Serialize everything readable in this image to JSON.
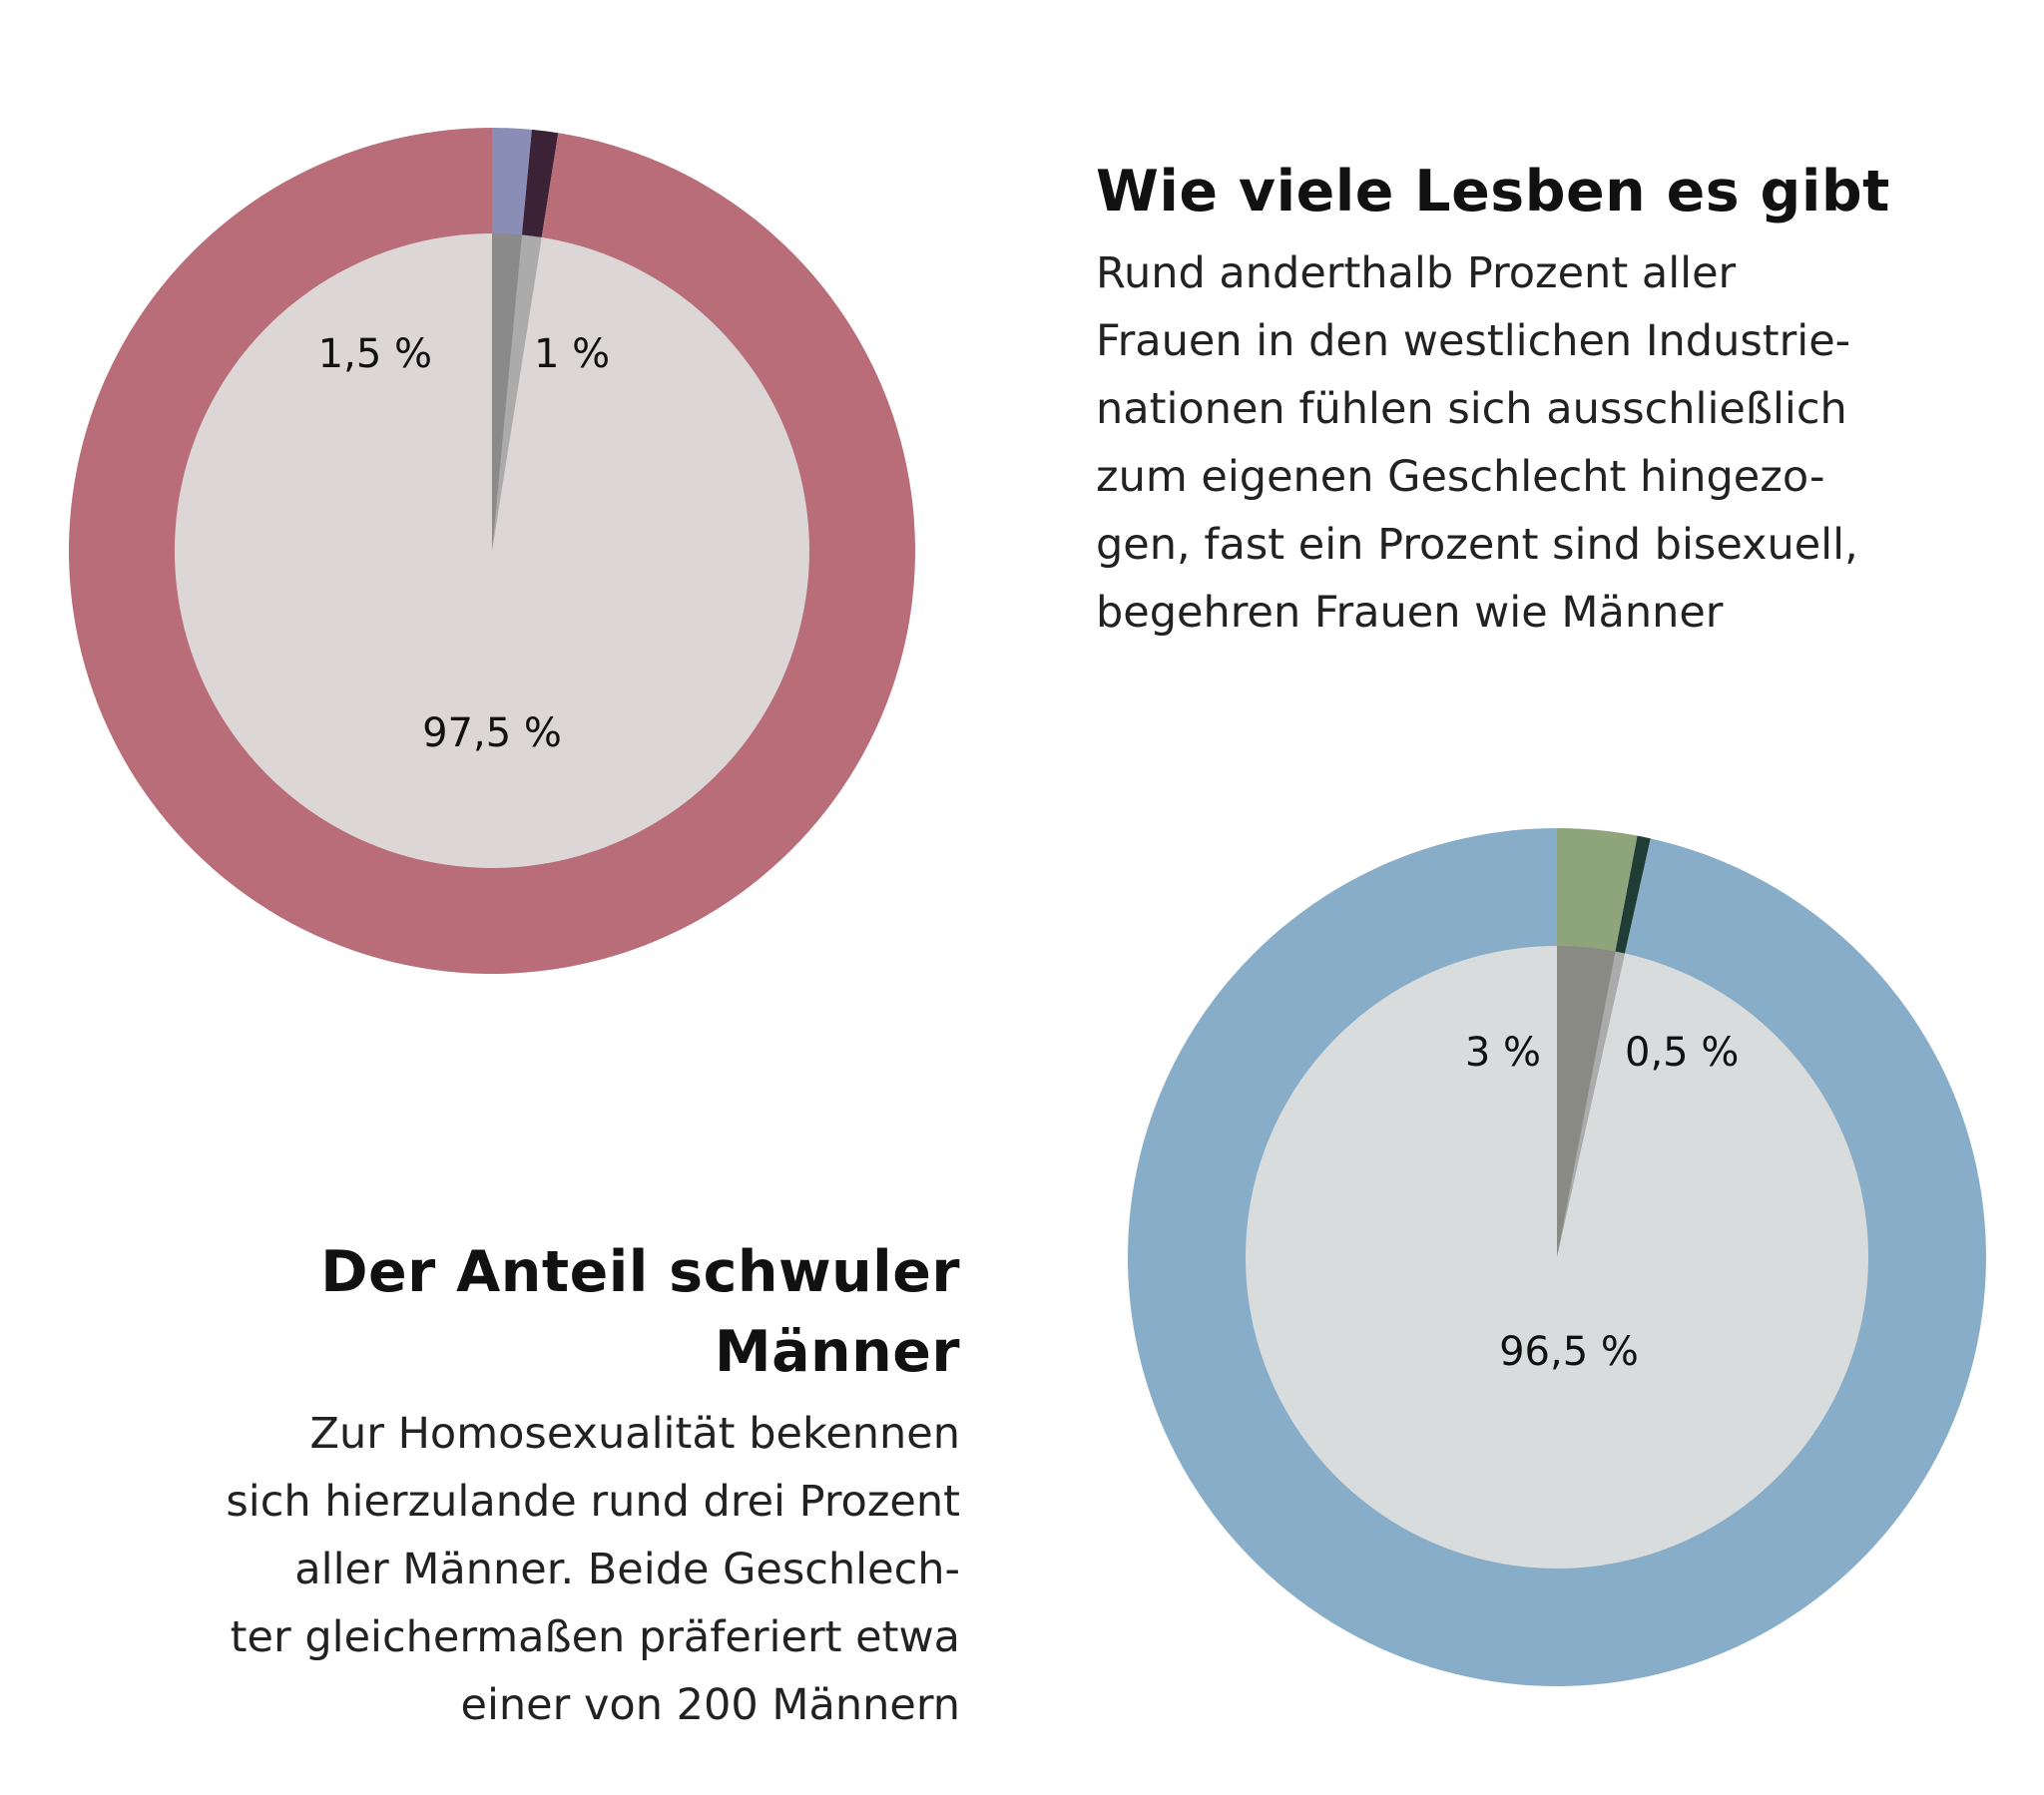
{
  "chart_data": [
    {
      "type": "pie",
      "id": "women",
      "slices": [
        {
          "label": "1,5 %",
          "value": 1.5,
          "outer_color": "#8a8db5",
          "inner_color": "#8a8a8a"
        },
        {
          "label": "1 %",
          "value": 1.0,
          "outer_color": "#3b2236",
          "inner_color": "#ababab"
        },
        {
          "label": "97,5 %",
          "value": 97.5,
          "outer_color": "#b86d78",
          "inner_color": "#dcd6d7"
        }
      ],
      "title": "Wie viele Lesben es gibt",
      "body_lines": [
        "Rund anderthalb Prozent aller",
        "Frauen in den westlichen Industrie-",
        "nationen fühlen sich ausschließlich",
        "zum eigenen Geschlecht hingezo-",
        "gen, fast ein Prozent sind bisexuell,",
        "begehren Frauen wie Männer"
      ]
    },
    {
      "type": "pie",
      "id": "men",
      "slices": [
        {
          "label": "3 %",
          "value": 3.0,
          "outer_color": "#8ea57b",
          "inner_color": "#8a8a85"
        },
        {
          "label": "0,5 %",
          "value": 0.5,
          "outer_color": "#1f3d34",
          "inner_color": "#ababab"
        },
        {
          "label": "96,5 %",
          "value": 96.5,
          "outer_color": "#87adc8",
          "inner_color": "#d9dcdd"
        }
      ],
      "title": "Der Anteil schwuler Männer",
      "body_lines": [
        "Zur Homosexualität bekennen",
        "sich hierzulande rund drei Prozent",
        "aller Männer. Beide Geschlech-",
        "ter gleichermaßen präferiert etwa",
        "einer von 200 Männern"
      ]
    }
  ]
}
